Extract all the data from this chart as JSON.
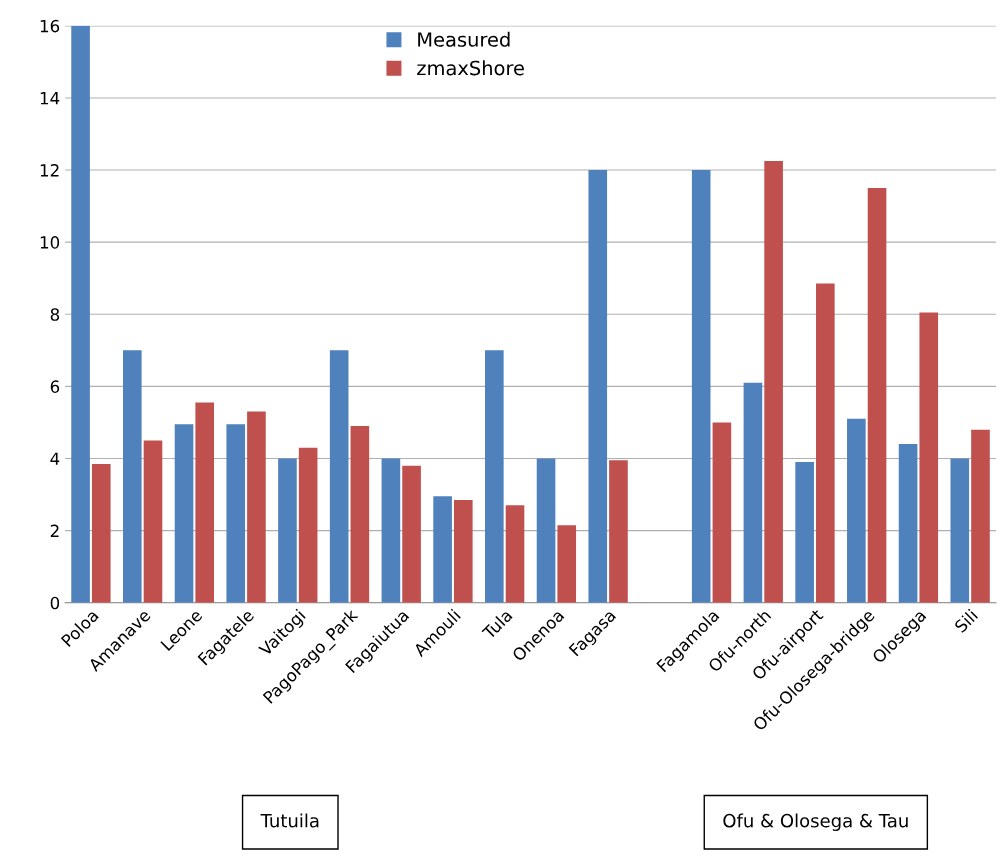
{
  "chart_data": {
    "type": "bar",
    "categories": [
      "Poloa",
      "Amanave",
      "Leone",
      "Fagatele",
      "Vaitogi",
      "PagoPago_Park",
      "Fagaiutua",
      "Amouli",
      "Tula",
      "Onenoa",
      "Fagasa",
      null,
      "Fagamola",
      "Ofu-north",
      "Ofu-airport",
      "Ofu-Olosega-bridge",
      "Olosega",
      "Sili"
    ],
    "series": [
      {
        "name": "Measured",
        "color": "#4f81bd",
        "values": [
          16,
          7,
          4.95,
          4.95,
          4.0,
          7,
          4.0,
          2.95,
          7,
          4.0,
          12,
          null,
          12,
          6.1,
          3.9,
          5.1,
          4.4,
          4.0
        ]
      },
      {
        "name": "zmaxShore",
        "color": "#c0504d",
        "values": [
          3.85,
          4.5,
          5.55,
          5.3,
          4.3,
          4.9,
          3.8,
          2.85,
          2.7,
          2.15,
          3.95,
          null,
          5.0,
          12.25,
          8.85,
          11.5,
          8.05,
          4.8
        ]
      }
    ],
    "ylim": [
      0,
      16
    ],
    "yticks": [
      0,
      2,
      4,
      6,
      8,
      10,
      12,
      14,
      16
    ],
    "grid": "y",
    "legend": "top",
    "annotations": [
      "Tutuila",
      "Ofu & Olosega & Tau"
    ]
  }
}
